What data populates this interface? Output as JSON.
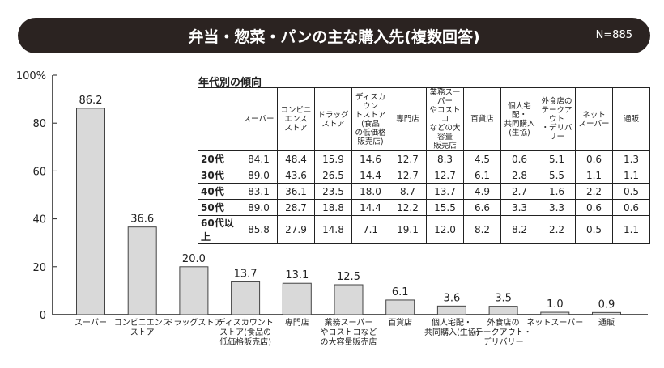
{
  "title": "弁当・惣菜・パンの主な購入先(複数回答)",
  "n_label": "N=885",
  "chart_data": {
    "type": "bar",
    "title": "弁当・惣菜・パンの主な購入先(複数回答)",
    "categories": [
      "スーパー",
      "コンビニエンス\nストア",
      "ドラッグストア",
      "ディスカウント\nストア(食品の\n低価格販売店)",
      "専門店",
      "業務スーパー\nやコストコなど\nの大容量販売店",
      "百貨店",
      "個人宅配・\n共同購入(生協)",
      "外食店の\nテークアウト・\nデリバリー",
      "ネットスーパー",
      "通販"
    ],
    "values": [
      86.2,
      36.6,
      20.0,
      13.7,
      13.1,
      12.5,
      6.1,
      3.6,
      3.5,
      1.0,
      0.9
    ],
    "value_labels": [
      "86.2",
      "36.6",
      "20.0",
      "13.7",
      "13.1",
      "12.5",
      "6.1",
      "3.6",
      "3.5",
      "1.0",
      "0.9"
    ],
    "ylim": [
      0,
      100
    ],
    "yticks": [
      "0",
      "20",
      "40",
      "60",
      "80",
      "100%"
    ],
    "ytick_values": [
      0,
      20,
      40,
      60,
      80,
      100
    ],
    "bar_color": "#d9d9d9"
  },
  "table": {
    "title": "年代別の傾向",
    "headers": [
      "スーパー",
      "コンビニ\nエンス\nストア",
      "ドラッグ\nストア",
      "ディスカウン\nトストア(食品\nの低価格\n販売店)",
      "専門店",
      "業務スーパー\nやコストコ\nなどの大容量\n販売店",
      "百貨店",
      "個人宅配・\n共同購入\n(生協)",
      "外食店の\nテークアウト\n・デリバリー",
      "ネット\nスーパー",
      "通販"
    ],
    "rows": [
      {
        "label": "20代",
        "values": [
          "84.1",
          "48.4",
          "15.9",
          "14.6",
          "12.7",
          "8.3",
          "4.5",
          "0.6",
          "5.1",
          "0.6",
          "1.3"
        ]
      },
      {
        "label": "30代",
        "values": [
          "89.0",
          "43.6",
          "26.5",
          "14.4",
          "12.7",
          "12.7",
          "6.1",
          "2.8",
          "5.5",
          "1.1",
          "1.1"
        ]
      },
      {
        "label": "40代",
        "values": [
          "83.1",
          "36.1",
          "23.5",
          "18.0",
          "8.7",
          "13.7",
          "4.9",
          "2.7",
          "1.6",
          "2.2",
          "0.5"
        ]
      },
      {
        "label": "50代",
        "values": [
          "89.0",
          "28.7",
          "18.8",
          "14.4",
          "12.2",
          "15.5",
          "6.6",
          "3.3",
          "3.3",
          "0.6",
          "0.6"
        ]
      },
      {
        "label": "60代以上",
        "values": [
          "85.8",
          "27.9",
          "14.8",
          "7.1",
          "19.1",
          "12.0",
          "8.2",
          "8.2",
          "2.2",
          "0.5",
          "1.1"
        ]
      }
    ]
  }
}
